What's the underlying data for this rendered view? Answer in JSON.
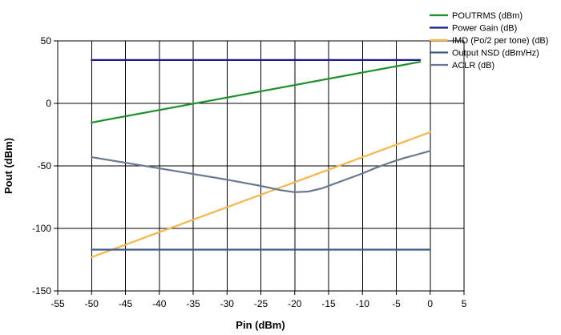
{
  "chart_data": {
    "type": "line",
    "title": "",
    "xlabel": "Pin (dBm)",
    "ylabel": "Pout (dBm)",
    "xlim": [
      -55,
      5
    ],
    "ylim": [
      -150,
      50
    ],
    "x_ticks": [
      -55,
      -50,
      -45,
      -40,
      -35,
      -30,
      -25,
      -20,
      -15,
      -10,
      -5,
      0,
      5
    ],
    "y_ticks": [
      -150,
      -100,
      -50,
      0,
      50
    ],
    "grid": true,
    "legend_position": "top-right",
    "series": [
      {
        "name": "POUTRMS (dBm)",
        "color": "#1f8f2a",
        "points": [
          [
            -50,
            -15.3
          ],
          [
            -1.5,
            33.2
          ]
        ]
      },
      {
        "name": "Power Gain (dB)",
        "color": "#1c1c8c",
        "points": [
          [
            -50,
            34.7
          ],
          [
            -1.5,
            34.7
          ]
        ]
      },
      {
        "name": "IMD (Po/2 per tone) (dB)",
        "color": "#f5b74a",
        "points": [
          [
            -50,
            -123
          ],
          [
            0,
            -23
          ]
        ]
      },
      {
        "name": "Output NSD (dBm/Hz)",
        "color": "#3d5a8a",
        "points": [
          [
            -50,
            -117
          ],
          [
            0,
            -117
          ]
        ]
      },
      {
        "name": "ACLR (dB)",
        "color": "#6a7890",
        "points": [
          [
            -50,
            -43
          ],
          [
            -45,
            -47.5
          ],
          [
            -40,
            -52
          ],
          [
            -35,
            -56.5
          ],
          [
            -30,
            -61
          ],
          [
            -25,
            -66
          ],
          [
            -22,
            -69.5
          ],
          [
            -20,
            -71
          ],
          [
            -18,
            -70.5
          ],
          [
            -16,
            -68
          ],
          [
            -14,
            -64
          ],
          [
            -12,
            -60
          ],
          [
            -10,
            -56
          ],
          [
            -8,
            -51.5
          ],
          [
            -6,
            -47.5
          ],
          [
            -4,
            -44
          ],
          [
            -2,
            -41
          ],
          [
            0,
            -38
          ]
        ]
      }
    ]
  }
}
